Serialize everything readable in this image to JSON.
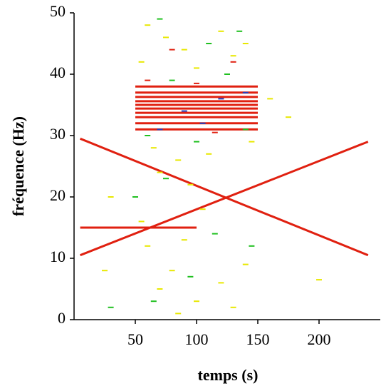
{
  "chart_data": {
    "type": "line",
    "xlabel": "temps (s)",
    "ylabel": "fréquence (Hz)",
    "xlim": [
      0,
      250
    ],
    "xticks": [
      50,
      100,
      150,
      200
    ],
    "ylim": [
      0,
      50
    ],
    "yticks": [
      0,
      10,
      20,
      30,
      40,
      50
    ],
    "series": [
      {
        "color": "#e02010",
        "x": [
          5,
          240
        ],
        "values": [
          29.5,
          10.5
        ]
      },
      {
        "color": "#e02010",
        "x": [
          5,
          240
        ],
        "values": [
          10.5,
          29
        ]
      },
      {
        "color": "#e02010",
        "x": [
          5,
          100
        ],
        "values": [
          15,
          15
        ]
      },
      {
        "color": "#e02010",
        "x": [
          50,
          150
        ],
        "values": [
          31,
          31
        ]
      },
      {
        "color": "#e02010",
        "x": [
          50,
          150
        ],
        "values": [
          32,
          32
        ]
      },
      {
        "color": "#e02010",
        "x": [
          50,
          150
        ],
        "values": [
          33,
          33
        ]
      },
      {
        "color": "#e02010",
        "x": [
          50,
          150
        ],
        "values": [
          33.7,
          33.7
        ]
      },
      {
        "color": "#e02010",
        "x": [
          50,
          150
        ],
        "values": [
          34.4,
          34.4
        ]
      },
      {
        "color": "#e02010",
        "x": [
          50,
          150
        ],
        "values": [
          35,
          35
        ]
      },
      {
        "color": "#e02010",
        "x": [
          50,
          150
        ],
        "values": [
          35.6,
          35.6
        ]
      },
      {
        "color": "#e02010",
        "x": [
          50,
          150
        ],
        "values": [
          36.3,
          36.3
        ]
      },
      {
        "color": "#e02010",
        "x": [
          50,
          150
        ],
        "values": [
          37,
          37
        ]
      },
      {
        "color": "#e02010",
        "x": [
          50,
          150
        ],
        "values": [
          38,
          38
        ]
      },
      {
        "color": "#e8e800",
        "style": "dash",
        "x": [
          60,
          75,
          90,
          120,
          140,
          55,
          100,
          130,
          65,
          85,
          110,
          145,
          70,
          95,
          60,
          80,
          70,
          100,
          120,
          140,
          55,
          90,
          130,
          85,
          160,
          175,
          30,
          25,
          200,
          105
        ],
        "values": [
          48,
          46,
          44,
          47,
          45,
          42,
          41,
          43,
          28,
          26,
          27,
          29,
          24,
          22,
          12,
          8,
          5,
          3,
          6,
          9,
          16,
          13,
          2,
          1,
          36,
          33,
          20,
          8,
          6.5,
          18
        ]
      },
      {
        "color": "#20c020",
        "style": "dash",
        "x": [
          70,
          110,
          135,
          80,
          125,
          60,
          100,
          140,
          75,
          115,
          95,
          65,
          145,
          50,
          30
        ],
        "values": [
          49,
          45,
          47,
          39,
          40,
          30,
          29,
          31,
          23,
          14,
          7,
          3,
          12,
          20,
          2
        ]
      },
      {
        "color": "#2040c0",
        "style": "dash",
        "x": [
          90,
          120,
          70,
          140,
          105
        ],
        "values": [
          34,
          36,
          31,
          37,
          32
        ]
      },
      {
        "color": "#e02010",
        "style": "dash",
        "x": [
          80,
          130,
          100,
          60,
          115
        ],
        "values": [
          44,
          42,
          38.5,
          39,
          30.5
        ]
      }
    ]
  }
}
